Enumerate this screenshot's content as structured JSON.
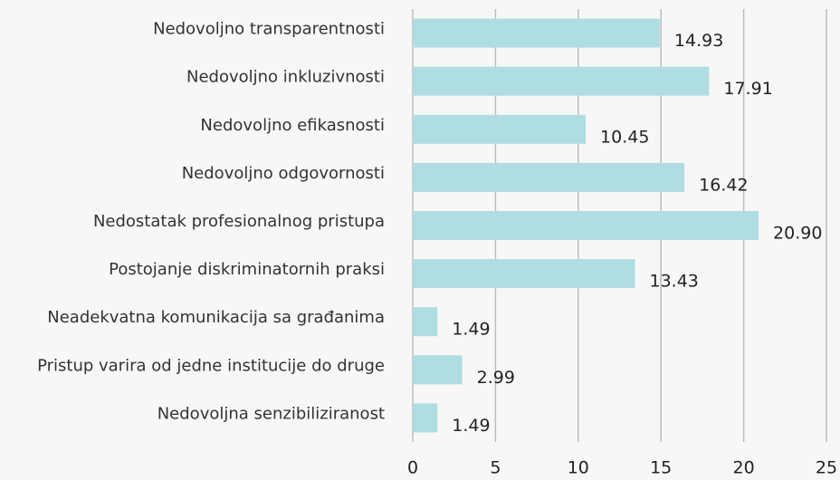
{
  "chart_data": {
    "type": "bar",
    "orientation": "horizontal",
    "categories": [
      "Nedovoljno transparentnosti",
      "Nedovoljno inkluzivnosti",
      "Nedovoljno efikasnosti",
      "Nedovoljno odgovornosti",
      "Nedostatak profesionalnog pristupa",
      "Postojanje diskriminatornih praksi",
      "Neadekvatna komunikacija sa građanima",
      "Pristup varira od jedne institucije do druge",
      "Nedovoljna senzibiliziranost"
    ],
    "values": [
      14.93,
      17.91,
      10.45,
      16.42,
      20.9,
      13.43,
      1.49,
      2.99,
      1.49
    ],
    "value_labels": [
      "14.93",
      "17.91",
      "10.45",
      "16.42",
      "20.90",
      "13.43",
      "1.49",
      "2.99",
      "1.49"
    ],
    "color": "#b0dde2",
    "xlim": [
      0,
      25
    ],
    "xticks": [
      0,
      5,
      10,
      15,
      20,
      25
    ],
    "grid": true
  }
}
